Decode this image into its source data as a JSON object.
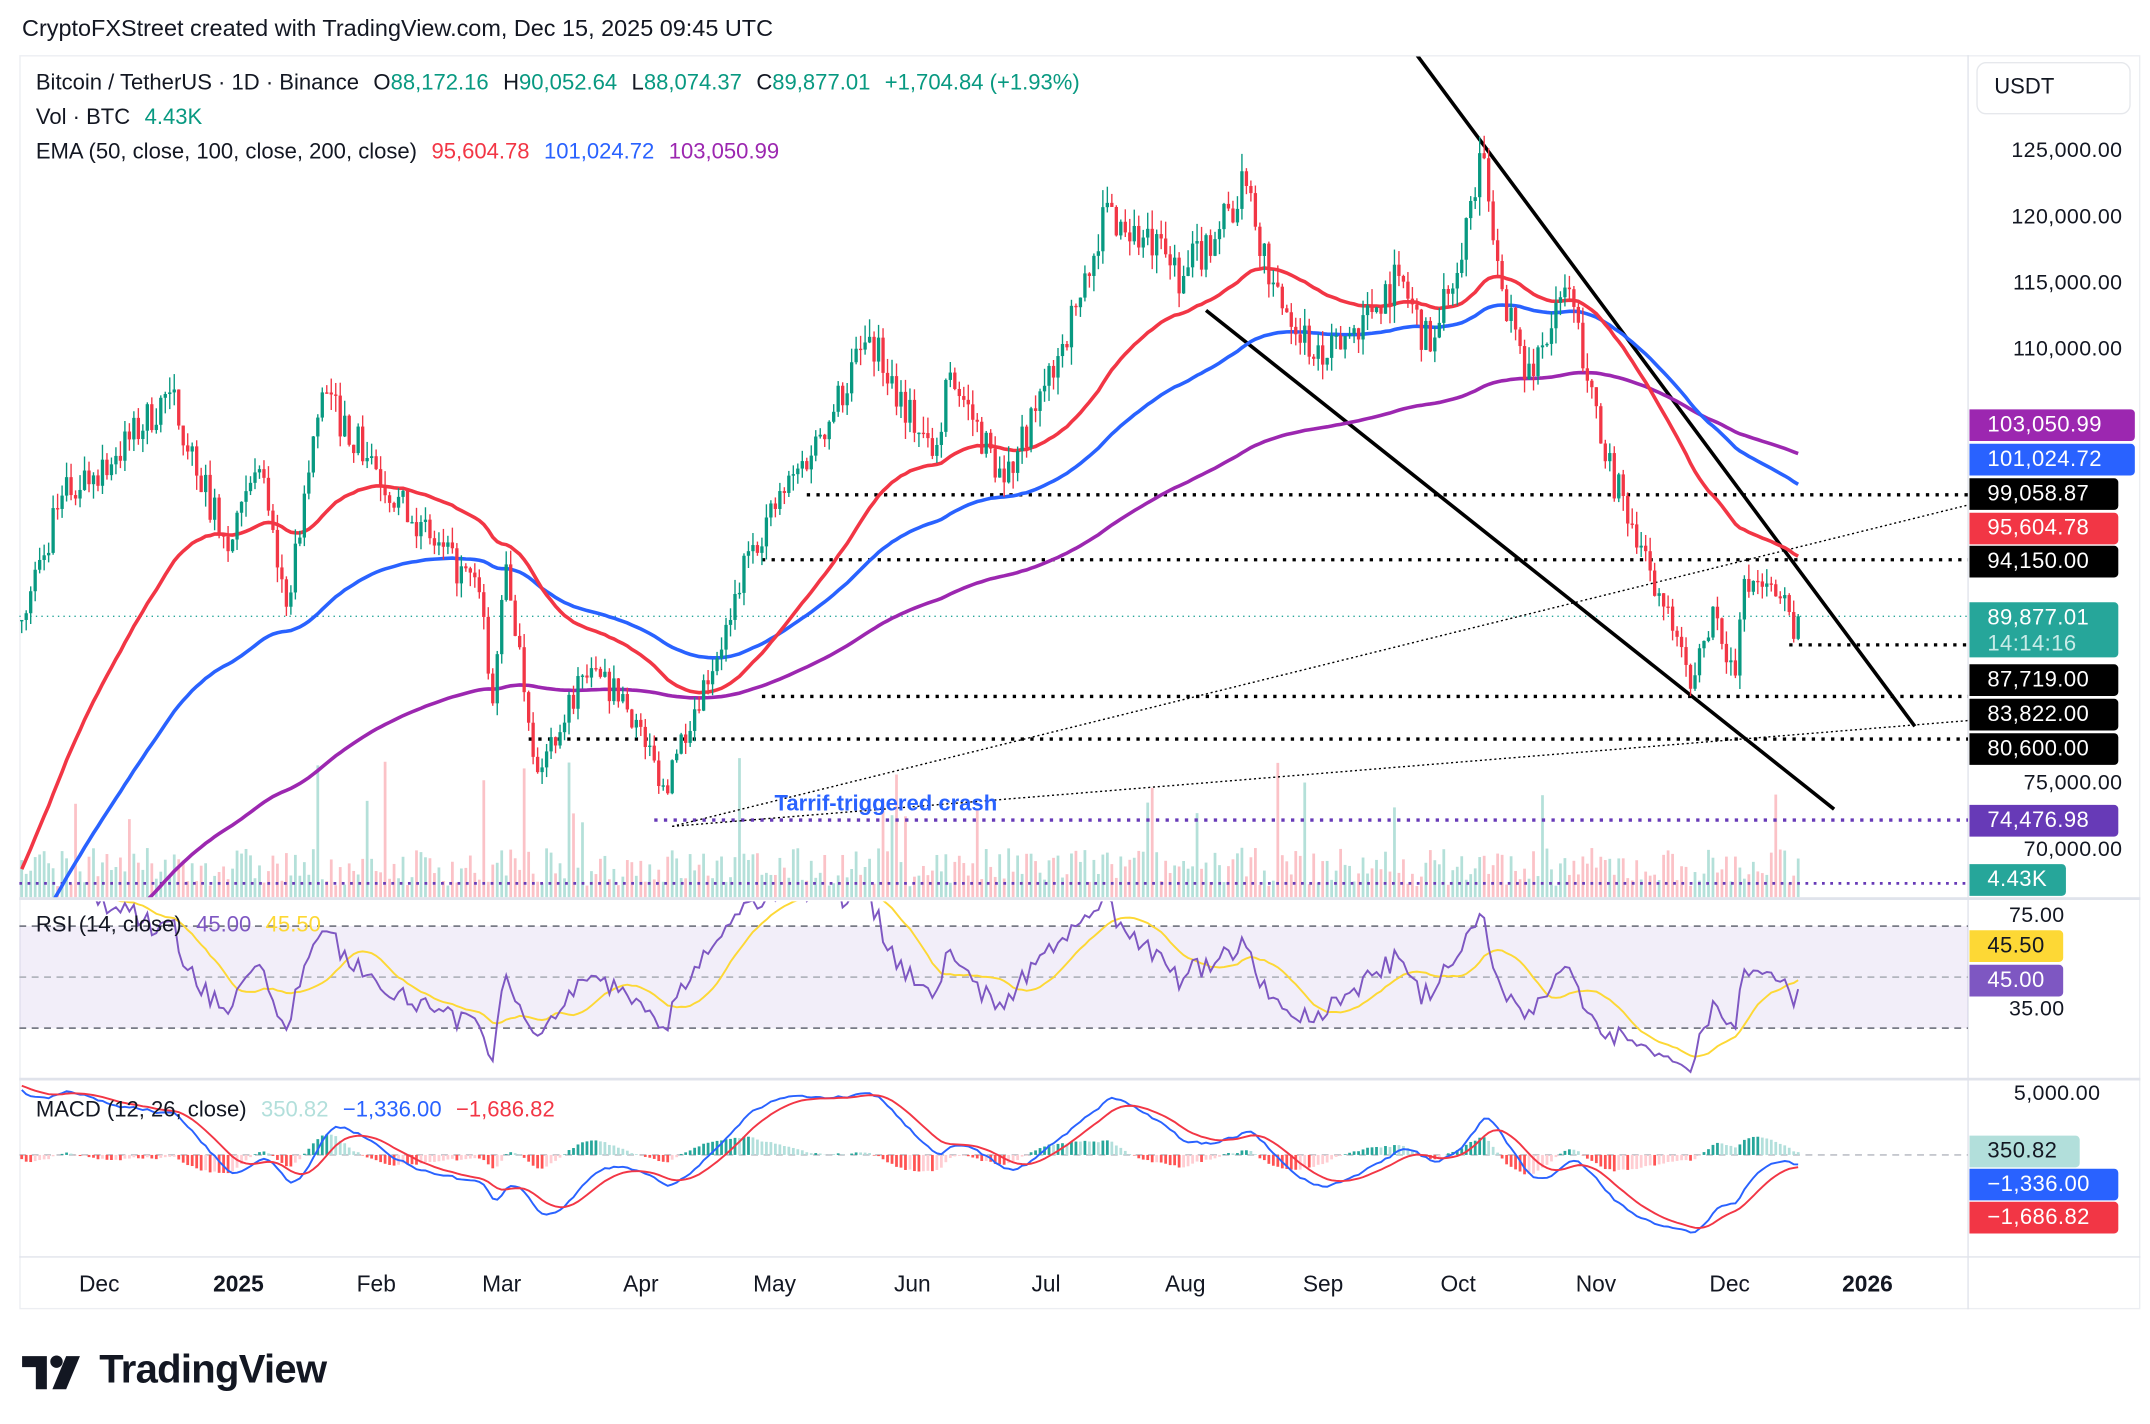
{
  "header": {
    "attribution": "CryptoFXStreet created with TradingView.com, Dec 15, 2025 09:45 UTC"
  },
  "legend": {
    "symbol": "Bitcoin / TetherUS · 1D · Binance",
    "o_label": "O",
    "open": "88,172.16",
    "h_label": "H",
    "high": "90,052.64",
    "l_label": "L",
    "low": "88,074.37",
    "c_label": "C",
    "close": "89,877.01",
    "change": "+1,704.84 (+1.93%)",
    "vol_label": "Vol · BTC",
    "vol": "4.43K",
    "ema_label": "EMA (50, close, 100, close, 200, close)",
    "ema50": "95,604.78",
    "ema100": "101,024.72",
    "ema200": "103,050.99"
  },
  "rsi": {
    "label": "RSI (14, close)",
    "value": "45.00",
    "ma": "45.50",
    "ticks": [
      "75.00",
      "35.00"
    ]
  },
  "macd": {
    "label": "MACD (12, 26, close)",
    "hist": "350.82",
    "macd": "−1,336.00",
    "signal": "−1,686.82",
    "ticks": [
      "5,000.00"
    ]
  },
  "price_axis": {
    "currency": "USDT",
    "ticks": [
      "125,000.00",
      "120,000.00",
      "115,000.00",
      "110,000.00",
      "75,000.00",
      "70,000.00"
    ],
    "badges": {
      "ema200": "103,050.99",
      "ema100": "101,024.72",
      "level1": "99,058.87",
      "ema50": "95,604.78",
      "level2": "94,150.00",
      "last": "89,877.01",
      "countdown": "14:14:16",
      "level3": "87,719.00",
      "level4": "83,822.00",
      "level5": "80,600.00",
      "level6": "74,476.98",
      "volume": "4.43K"
    }
  },
  "time_axis": [
    "Dec",
    "2025",
    "Feb",
    "Mar",
    "Apr",
    "May",
    "Jun",
    "Jul",
    "Aug",
    "Sep",
    "Oct",
    "Nov",
    "Dec",
    "2026"
  ],
  "annotation": "Tarrif-triggered crash",
  "logo": "TradingView",
  "colors": {
    "up": "#089981",
    "down": "#f23645",
    "ema50": "#f23645",
    "ema100": "#2962ff",
    "ema200": "#9c27b0",
    "rsi": "#7e57c2",
    "rsi_ma": "#fdd835",
    "macd": "#2962ff",
    "signal": "#f23645",
    "level": "#000000",
    "support_purple": "#673ab7"
  },
  "chart_data": {
    "type": "candlestick",
    "symbol": "BTCUSDT",
    "interval": "1D",
    "ylim": [
      67000,
      132000
    ],
    "xlim": [
      "2024-11-13",
      "2026-01-22"
    ],
    "last_candle": {
      "date": "2025-12-15",
      "open": 88172.16,
      "high": 90052.64,
      "low": 88074.37,
      "close": 89877.01
    },
    "close_path": [
      [
        "2024-11-14",
        89600
      ],
      [
        "2024-11-23",
        99000
      ],
      [
        "2024-12-05",
        102000
      ],
      [
        "2024-12-17",
        106800
      ],
      [
        "2024-12-30",
        94800
      ],
      [
        "2025-01-06",
        101000
      ],
      [
        "2025-01-12",
        90600
      ],
      [
        "2025-01-20",
        106800
      ],
      [
        "2025-02-01",
        101000
      ],
      [
        "2025-02-09",
        97000
      ],
      [
        "2025-02-24",
        91700
      ],
      [
        "2025-02-27",
        83300
      ],
      [
        "2025-03-02",
        93800
      ],
      [
        "2025-03-09",
        78100
      ],
      [
        "2025-03-19",
        85400
      ],
      [
        "2025-03-28",
        84000
      ],
      [
        "2025-04-07",
        76500
      ],
      [
        "2025-04-08",
        79000
      ],
      [
        "2025-04-21",
        89600
      ],
      [
        "2025-04-25",
        94800
      ],
      [
        "2025-05-11",
        103600
      ],
      [
        "2025-05-22",
        111000
      ],
      [
        "2025-06-05",
        102000
      ],
      [
        "2025-06-09",
        108300
      ],
      [
        "2025-06-21",
        100000
      ],
      [
        "2025-06-30",
        107300
      ],
      [
        "2025-07-10",
        115600
      ],
      [
        "2025-07-13",
        120800
      ],
      [
        "2025-07-31",
        115600
      ],
      [
        "2025-08-14",
        122400
      ],
      [
        "2025-08-20",
        115100
      ],
      [
        "2025-08-31",
        108900
      ],
      [
        "2025-09-17",
        115600
      ],
      [
        "2025-09-24",
        109900
      ],
      [
        "2025-10-06",
        124500
      ],
      [
        "2025-10-10",
        114600
      ],
      [
        "2025-10-15",
        107800
      ],
      [
        "2025-10-25",
        114600
      ],
      [
        "2025-11-02",
        101600
      ],
      [
        "2025-11-11",
        94800
      ],
      [
        "2025-11-21",
        84400
      ],
      [
        "2025-11-26",
        90600
      ],
      [
        "2025-12-01",
        85400
      ],
      [
        "2025-12-03",
        92700
      ],
      [
        "2025-12-09",
        92300
      ],
      [
        "2025-12-13",
        90200
      ],
      [
        "2025-12-14",
        88172
      ],
      [
        "2025-12-15",
        89877.01
      ]
    ],
    "indicators": {
      "ema": [
        {
          "period": 50,
          "last": 95604.78
        },
        {
          "period": 100,
          "last": 101024.72
        },
        {
          "period": 200,
          "last": 103050.99
        }
      ],
      "rsi": {
        "period": 14,
        "last": 45.0,
        "ma_last": 45.5,
        "bands": [
          70,
          50,
          30
        ]
      },
      "macd": {
        "fast": 12,
        "slow": 26,
        "hist_last": 350.82,
        "macd_last": -1336.0,
        "signal_last": -1686.82
      }
    },
    "horizontal_levels": [
      {
        "price": 99058.87,
        "from": "2025-05-08",
        "color": "#000000"
      },
      {
        "price": 94150.0,
        "from": "2025-04-28",
        "color": "#000000"
      },
      {
        "price": 87719.0,
        "from": "2025-12-13",
        "color": "#000000"
      },
      {
        "price": 83822.0,
        "from": "2025-04-28",
        "color": "#000000"
      },
      {
        "price": 80600.0,
        "from": "2025-03-07",
        "color": "#000000"
      },
      {
        "price": 74476.98,
        "from": "2025-04-04",
        "color": "#673ab7"
      }
    ],
    "trendlines": [
      {
        "from": [
          "2025-09-21",
          132300
        ],
        "to": [
          "2026-01-10",
          81560
        ],
        "style": "solid"
      },
      {
        "from": [
          "2025-08-05",
          113000
        ],
        "to": [
          "2025-12-23",
          75300
        ],
        "style": "solid"
      },
      {
        "from": [
          "2025-04-08",
          74000
        ],
        "to": [
          "2026-01-22",
          98300
        ],
        "style": "dotted"
      },
      {
        "from": [
          "2025-04-08",
          74000
        ],
        "to": [
          "2026-01-22",
          82000
        ],
        "style": "dotted"
      }
    ]
  }
}
